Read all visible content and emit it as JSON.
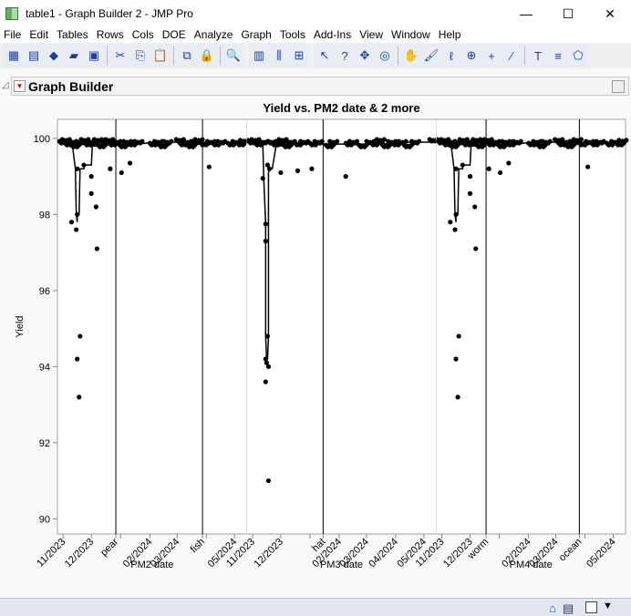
{
  "window": {
    "title": "table1 - Graph Builder 2 - JMP Pro",
    "minimize": "—",
    "maximize": "☐",
    "close": "✕"
  },
  "menu": [
    "File",
    "Edit",
    "Tables",
    "Rows",
    "Cols",
    "DOE",
    "Analyze",
    "Graph",
    "Tools",
    "Add-Ins",
    "View",
    "Window",
    "Help"
  ],
  "toolbar": {
    "groups": [
      [
        "new-data-table-icon",
        "new-script-icon",
        "python-icon",
        "open-icon",
        "save-icon",
        "|",
        "cut-icon",
        "copy-icon",
        "paste-icon",
        "|",
        "data-filter-icon",
        "lock-icon",
        "|",
        "search-icon"
      ],
      [
        "graph-builder-icon",
        "column-switcher-icon",
        "add-table-icon"
      ],
      [
        "arrow-icon",
        "help-icon",
        "scroller-icon",
        "crosshair-target-icon",
        "|",
        "grabber-icon",
        "brush-icon",
        "lasso-icon",
        "magnifier-icon",
        "crosshair-icon",
        "ruler-icon",
        "|",
        "annotate-icon",
        "line-icon",
        "polygon-icon"
      ]
    ],
    "glyphs": {
      "new-data-table-icon": "▦",
      "new-script-icon": "▤",
      "python-icon": "◆",
      "open-icon": "▰",
      "save-icon": "▣",
      "cut-icon": "✂",
      "copy-icon": "⎘",
      "paste-icon": "📋",
      "data-filter-icon": "⧉",
      "lock-icon": "🔒",
      "search-icon": "🔍",
      "graph-builder-icon": "▥",
      "column-switcher-icon": "⫼",
      "add-table-icon": "⊞",
      "arrow-icon": "↖",
      "help-icon": "?",
      "scroller-icon": "✥",
      "crosshair-target-icon": "◎",
      "grabber-icon": "✋",
      "brush-icon": "🖌",
      "lasso-icon": "ℓ",
      "magnifier-icon": "⊕",
      "crosshair-icon": "+",
      "ruler-icon": "∕",
      "annotate-icon": "T",
      "line-icon": "≡",
      "polygon-icon": "⬠"
    }
  },
  "report": {
    "title": "Graph Builder"
  },
  "chart_data": {
    "type": "scatter",
    "title": "Yield vs. PM2 date & 2 more",
    "ylabel": "Yield",
    "ylim": [
      89.6,
      100.5
    ],
    "yticks": [
      90,
      92,
      94,
      96,
      98,
      100
    ],
    "xlim": [
      "2023-10-26",
      "2024-05-14"
    ],
    "smoother": true,
    "grid": false,
    "colors": {
      "points": "#000000",
      "ref_line": "#000000",
      "panel_divider": "#d9d9d9"
    },
    "panels": [
      {
        "xlabel": "PM2 date",
        "ticks": [
          {
            "date": "2023-11-01",
            "label": "11/2023"
          },
          {
            "date": "2023-12-01",
            "label": "12/2023"
          },
          {
            "date": "2024-01-01",
            "label": ""
          },
          {
            "date": "2024-02-01",
            "label": "02/2024"
          },
          {
            "date": "2024-03-01",
            "label": "03/2024"
          },
          {
            "date": "2024-04-01",
            "label": ""
          },
          {
            "date": "2024-05-01",
            "label": "05/2024"
          }
        ],
        "ref_lines": [
          {
            "date": "2023-12-27",
            "label": "pear"
          },
          {
            "date": "2024-03-28",
            "label": "fish"
          }
        ],
        "points": [
          [
            "2023-11-01",
            99.9
          ],
          [
            "2023-11-04",
            99.95
          ],
          [
            "2023-11-07",
            99.85
          ],
          [
            "2023-11-10",
            97.8
          ],
          [
            "2023-11-11",
            99.9
          ],
          [
            "2023-11-14",
            99.8
          ],
          [
            "2023-11-15",
            97.6
          ],
          [
            "2023-11-16",
            98.0
          ],
          [
            "2023-11-16",
            94.2
          ],
          [
            "2023-11-16",
            99.2
          ],
          [
            "2023-11-18",
            93.2
          ],
          [
            "2023-11-19",
            94.8
          ],
          [
            "2023-11-19",
            99.9
          ],
          [
            "2023-11-23",
            99.3
          ],
          [
            "2023-11-24",
            99.95
          ],
          [
            "2023-11-28",
            99.85
          ],
          [
            "2023-12-01",
            98.55
          ],
          [
            "2023-12-01",
            99.0
          ],
          [
            "2023-12-02",
            99.9
          ],
          [
            "2023-12-06",
            98.2
          ],
          [
            "2023-12-07",
            97.1
          ],
          [
            "2023-12-08",
            99.95
          ],
          [
            "2023-12-12",
            99.8
          ],
          [
            "2023-12-16",
            99.9
          ],
          [
            "2023-12-20",
            99.95
          ],
          [
            "2023-12-21",
            99.2
          ],
          [
            "2023-12-24",
            99.85
          ],
          [
            "2023-12-28",
            99.9
          ],
          [
            "2024-01-02",
            99.1
          ],
          [
            "2024-01-04",
            99.8
          ],
          [
            "2024-01-08",
            99.9
          ],
          [
            "2024-01-11",
            99.35
          ],
          [
            "2024-01-14",
            99.85
          ],
          [
            "2024-01-20",
            99.9
          ],
          [
            "2024-02-05",
            99.85
          ],
          [
            "2024-02-10",
            99.9
          ],
          [
            "2024-02-15",
            99.8
          ],
          [
            "2024-02-20",
            99.9
          ],
          [
            "2024-03-04",
            99.95
          ],
          [
            "2024-03-08",
            99.85
          ],
          [
            "2024-03-12",
            99.9
          ],
          [
            "2024-03-16",
            99.8
          ],
          [
            "2024-03-20",
            99.9
          ],
          [
            "2024-03-24",
            99.95
          ],
          [
            "2024-03-30",
            99.85
          ],
          [
            "2024-04-04",
            99.25
          ],
          [
            "2024-04-06",
            99.9
          ],
          [
            "2024-04-12",
            99.85
          ],
          [
            "2024-04-17",
            99.9
          ],
          [
            "2024-04-28",
            99.85
          ],
          [
            "2024-05-03",
            99.9
          ],
          [
            "2024-05-08",
            99.85
          ],
          [
            "2024-05-11",
            99.93
          ]
        ]
      },
      {
        "xlabel": "PM3 date",
        "ticks": [
          {
            "date": "2023-11-01",
            "label": "11/2023"
          },
          {
            "date": "2023-12-01",
            "label": "12/2023"
          },
          {
            "date": "2024-01-01",
            "label": ""
          },
          {
            "date": "2024-02-01",
            "label": "02/2024"
          },
          {
            "date": "2024-03-01",
            "label": "03/2024"
          },
          {
            "date": "2024-04-01",
            "label": "04/2024"
          },
          {
            "date": "2024-05-01",
            "label": "05/2024"
          }
        ],
        "ref_lines": [
          {
            "date": "2024-01-15",
            "label": "hat"
          }
        ],
        "points": [
          [
            "2023-11-01",
            99.9
          ],
          [
            "2023-11-04",
            99.95
          ],
          [
            "2023-11-08",
            99.85
          ],
          [
            "2023-11-12",
            98.95
          ],
          [
            "2023-11-13",
            99.9
          ],
          [
            "2023-11-15",
            97.75
          ],
          [
            "2023-11-15",
            97.3
          ],
          [
            "2023-11-15",
            94.2
          ],
          [
            "2023-11-15",
            93.6
          ],
          [
            "2023-11-16",
            94.1
          ],
          [
            "2023-11-17",
            99.3
          ],
          [
            "2023-11-17",
            94.8
          ],
          [
            "2023-11-18",
            94.0
          ],
          [
            "2023-11-18",
            91.0
          ],
          [
            "2023-11-19",
            99.2
          ],
          [
            "2023-11-22",
            99.9
          ],
          [
            "2023-11-26",
            99.85
          ],
          [
            "2023-12-01",
            99.1
          ],
          [
            "2023-12-03",
            99.95
          ],
          [
            "2023-12-08",
            99.8
          ],
          [
            "2023-12-12",
            99.9
          ],
          [
            "2023-12-19",
            99.15
          ],
          [
            "2023-12-20",
            99.85
          ],
          [
            "2023-12-26",
            99.9
          ],
          [
            "2024-01-03",
            99.2
          ],
          [
            "2024-01-05",
            99.85
          ],
          [
            "2024-01-10",
            99.9
          ],
          [
            "2024-01-22",
            99.8
          ],
          [
            "2024-01-26",
            99.9
          ],
          [
            "2024-02-08",
            99.0
          ],
          [
            "2024-02-12",
            99.85
          ],
          [
            "2024-02-16",
            99.9
          ],
          [
            "2024-02-26",
            99.8
          ],
          [
            "2024-03-05",
            99.9
          ],
          [
            "2024-03-10",
            99.85
          ],
          [
            "2024-03-16",
            99.95
          ],
          [
            "2024-03-22",
            99.8
          ],
          [
            "2024-03-28",
            99.9
          ],
          [
            "2024-04-02",
            99.85
          ],
          [
            "2024-04-08",
            99.9
          ],
          [
            "2024-04-14",
            99.8
          ],
          [
            "2024-04-22",
            99.9
          ],
          [
            "2024-05-11",
            99.95
          ]
        ]
      },
      {
        "xlabel": "PM4 date",
        "ticks": [
          {
            "date": "2023-11-01",
            "label": "11/2023"
          },
          {
            "date": "2023-12-01",
            "label": "12/2023"
          },
          {
            "date": "2024-01-01",
            "label": ""
          },
          {
            "date": "2024-02-01",
            "label": "02/2024"
          },
          {
            "date": "2024-03-01",
            "label": "03/2024"
          },
          {
            "date": "2024-04-01",
            "label": ""
          },
          {
            "date": "2024-05-01",
            "label": "05/2024"
          }
        ],
        "ref_lines": [
          {
            "date": "2023-12-18",
            "label": "worm"
          },
          {
            "date": "2024-03-26",
            "label": "ocean"
          }
        ],
        "points": [
          [
            "2023-11-01",
            99.9
          ],
          [
            "2023-11-04",
            99.95
          ],
          [
            "2023-11-07",
            99.85
          ],
          [
            "2023-11-10",
            97.8
          ],
          [
            "2023-11-11",
            99.9
          ],
          [
            "2023-11-14",
            99.8
          ],
          [
            "2023-11-15",
            97.6
          ],
          [
            "2023-11-16",
            98.0
          ],
          [
            "2023-11-16",
            94.2
          ],
          [
            "2023-11-16",
            99.2
          ],
          [
            "2023-11-18",
            93.2
          ],
          [
            "2023-11-19",
            94.8
          ],
          [
            "2023-11-19",
            99.9
          ],
          [
            "2023-11-23",
            99.3
          ],
          [
            "2023-11-24",
            99.95
          ],
          [
            "2023-11-28",
            99.85
          ],
          [
            "2023-12-01",
            98.55
          ],
          [
            "2023-12-01",
            99.0
          ],
          [
            "2023-12-02",
            99.9
          ],
          [
            "2023-12-06",
            98.2
          ],
          [
            "2023-12-07",
            97.1
          ],
          [
            "2023-12-08",
            99.95
          ],
          [
            "2023-12-12",
            99.8
          ],
          [
            "2023-12-16",
            99.9
          ],
          [
            "2023-12-20",
            99.95
          ],
          [
            "2023-12-21",
            99.2
          ],
          [
            "2023-12-24",
            99.85
          ],
          [
            "2023-12-28",
            99.9
          ],
          [
            "2024-01-02",
            99.1
          ],
          [
            "2024-01-04",
            99.8
          ],
          [
            "2024-01-08",
            99.9
          ],
          [
            "2024-01-11",
            99.35
          ],
          [
            "2024-01-14",
            99.85
          ],
          [
            "2024-01-20",
            99.9
          ],
          [
            "2024-02-05",
            99.85
          ],
          [
            "2024-02-10",
            99.9
          ],
          [
            "2024-02-15",
            99.8
          ],
          [
            "2024-02-20",
            99.9
          ],
          [
            "2024-03-04",
            99.95
          ],
          [
            "2024-03-08",
            99.85
          ],
          [
            "2024-03-12",
            99.9
          ],
          [
            "2024-03-16",
            99.8
          ],
          [
            "2024-03-20",
            99.9
          ],
          [
            "2024-03-24",
            99.95
          ],
          [
            "2024-03-30",
            99.85
          ],
          [
            "2024-04-04",
            99.25
          ],
          [
            "2024-04-06",
            99.9
          ],
          [
            "2024-04-12",
            99.85
          ],
          [
            "2024-04-17",
            99.9
          ],
          [
            "2024-04-28",
            99.85
          ],
          [
            "2024-05-03",
            99.9
          ],
          [
            "2024-05-08",
            99.85
          ],
          [
            "2024-05-11",
            99.93
          ]
        ]
      }
    ]
  },
  "statusbar": {
    "home": "⌂",
    "dropdown": "▼"
  }
}
